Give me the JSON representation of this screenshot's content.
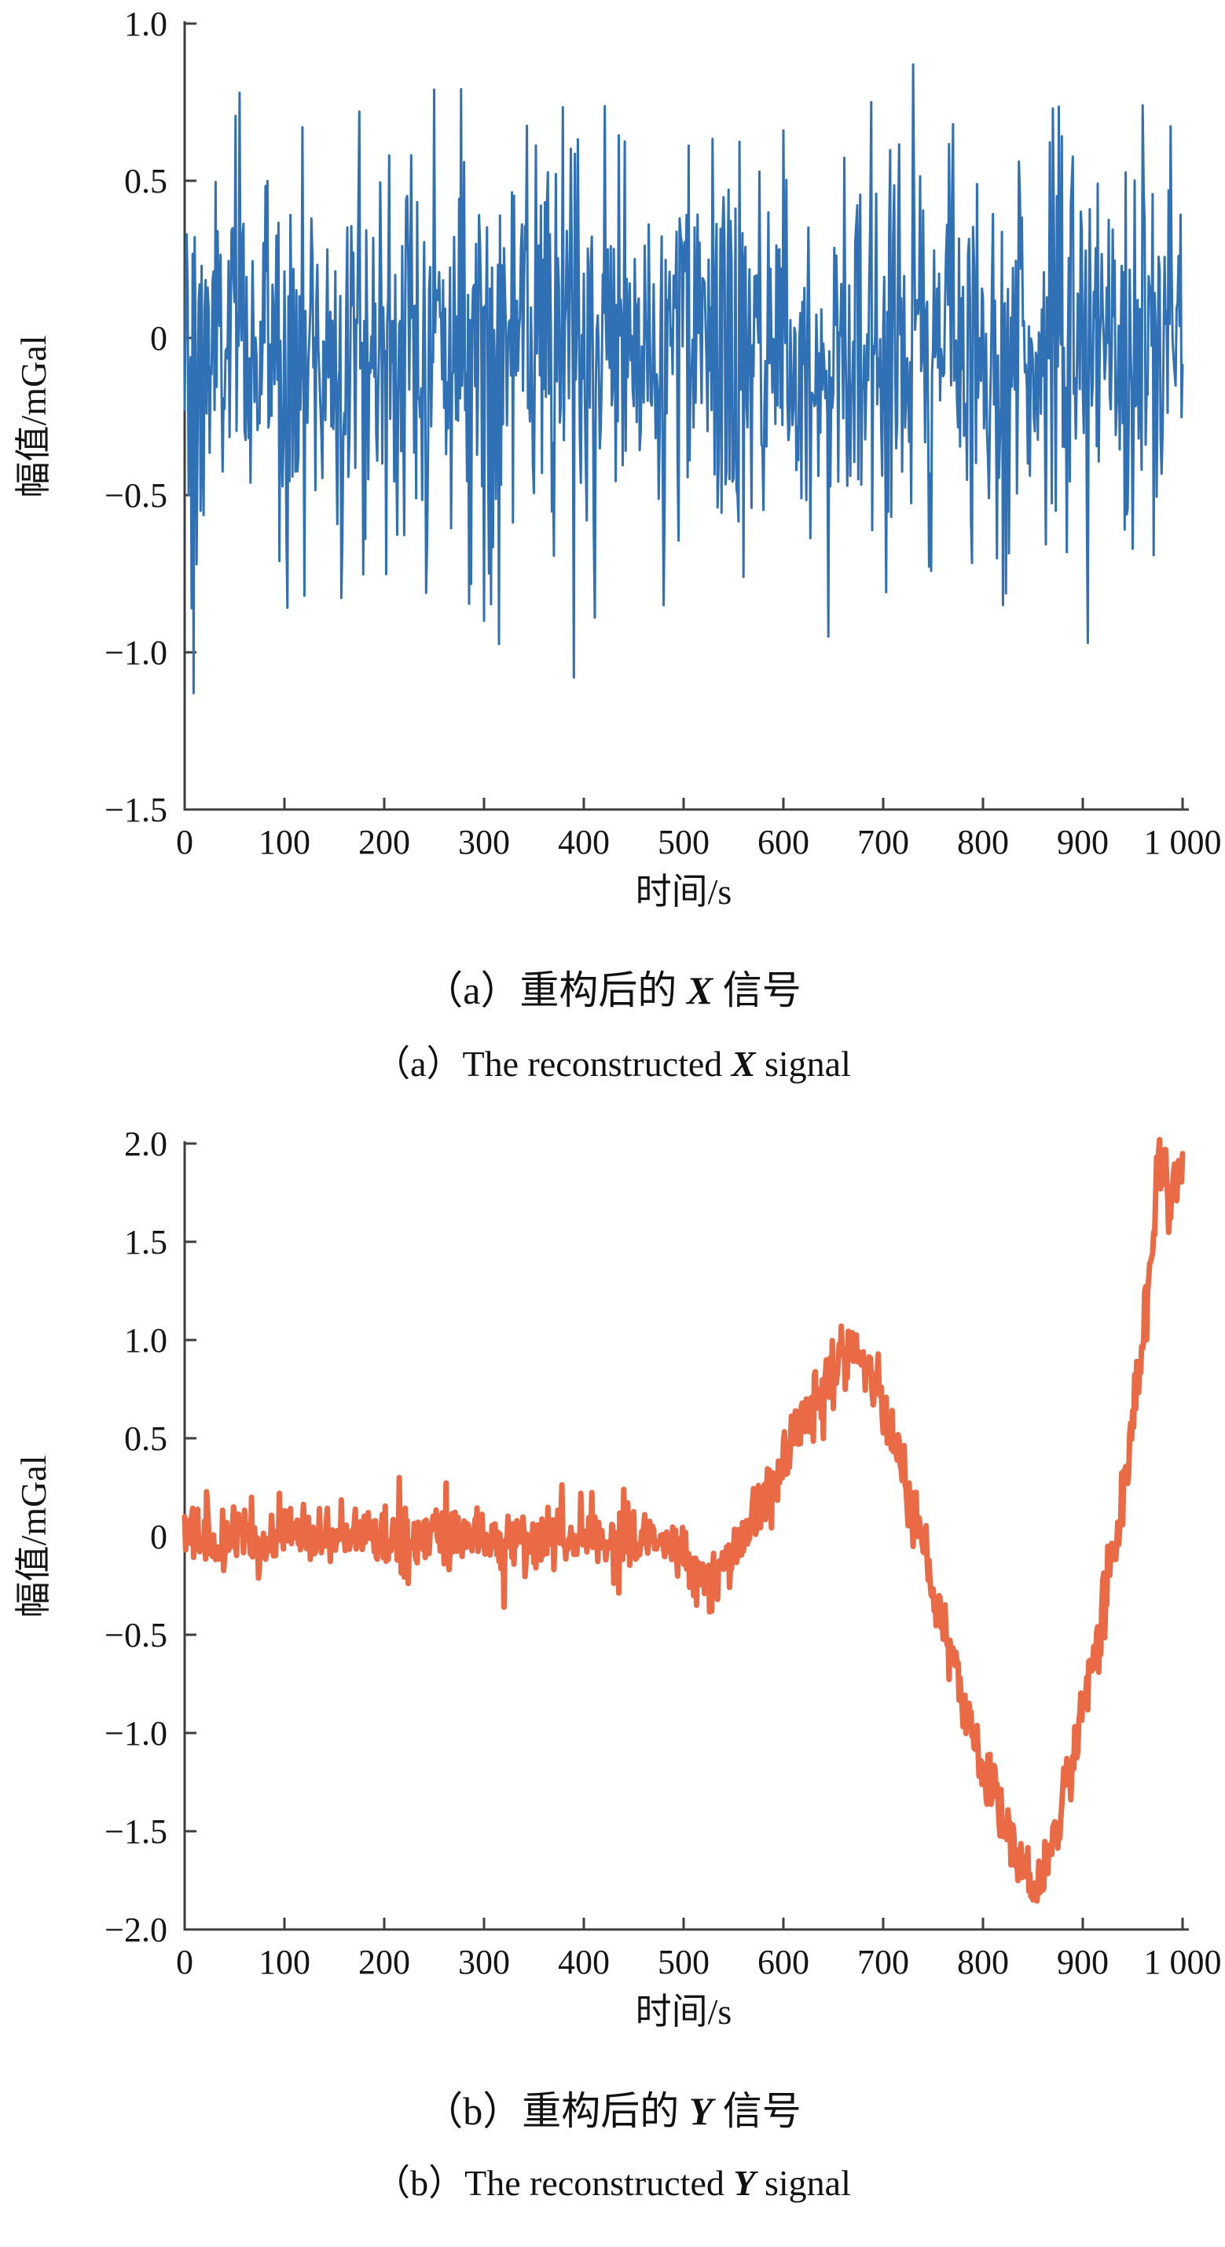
{
  "figure": {
    "background": "#ffffff",
    "axis_color": "#3e3e3e",
    "text_color": "#141414"
  },
  "chart_data": [
    {
      "id": "a",
      "type": "line",
      "xlabel": "时间/s",
      "ylabel": "幅值/mGal",
      "xlim": [
        0,
        1000
      ],
      "ylim": [
        -1.5,
        1.0
      ],
      "xtick_values": [
        0,
        100,
        200,
        300,
        400,
        500,
        600,
        700,
        800,
        900,
        1000
      ],
      "xtick_labels": [
        "0",
        "100",
        "200",
        "300",
        "400",
        "500",
        "600",
        "700",
        "800",
        "900",
        "1 000"
      ],
      "ytick_values": [
        1.0,
        0.5,
        0,
        -0.5,
        -1.0,
        -1.5
      ],
      "ytick_labels": [
        "1.0",
        "0.5",
        "0",
        "−0.5",
        "−1.0",
        "−1.5"
      ],
      "grid": false,
      "legend": "none",
      "color": "#3070b4",
      "line_width": 3,
      "series": {
        "name": "reconstructed X signal",
        "n": 1001,
        "seed": 1234,
        "noise_std": 0.3,
        "noise_mean": -0.03,
        "clip": [
          -1.14,
          0.88
        ],
        "trend": [
          [
            0,
            0
          ],
          [
            1000,
            0
          ]
        ],
        "spikes": [
          [
            2,
            0.33
          ],
          [
            4,
            -0.5
          ],
          [
            7,
            -0.86
          ],
          [
            9,
            -1.13
          ],
          [
            12,
            -0.72
          ],
          [
            16,
            -0.55
          ],
          [
            55,
            0.78
          ],
          [
            120,
            -0.82
          ],
          [
            175,
            0.72
          ],
          [
            250,
            0.79
          ],
          [
            300,
            -0.9
          ],
          [
            390,
            -1.08
          ],
          [
            480,
            -0.85
          ],
          [
            560,
            -0.76
          ],
          [
            600,
            0.66
          ],
          [
            645,
            -0.95
          ],
          [
            688,
            0.75
          ],
          [
            730,
            0.87
          ],
          [
            770,
            0.68
          ],
          [
            820,
            -0.85
          ],
          [
            870,
            0.73
          ],
          [
            905,
            -0.97
          ],
          [
            960,
            0.74
          ]
        ]
      },
      "title_cn": {
        "prefix": "（a）重构后的 ",
        "em": "X",
        "suffix": " 信号"
      },
      "title_en": {
        "prefix": "（a）The reconstructed ",
        "em": "X",
        "suffix": " signal"
      }
    },
    {
      "id": "b",
      "type": "line",
      "xlabel": "时间/s",
      "ylabel": "幅值/mGal",
      "xlim": [
        0,
        1000
      ],
      "ylim": [
        -2.0,
        2.0
      ],
      "xtick_values": [
        0,
        100,
        200,
        300,
        400,
        500,
        600,
        700,
        800,
        900,
        1000
      ],
      "xtick_labels": [
        "0",
        "100",
        "200",
        "300",
        "400",
        "500",
        "600",
        "700",
        "800",
        "900",
        "1 000"
      ],
      "ytick_values": [
        2.0,
        1.5,
        1.0,
        0.5,
        0,
        -0.5,
        -1.0,
        -1.5,
        -2.0
      ],
      "ytick_labels": [
        "2.0",
        "1.5",
        "1.0",
        "0.5",
        "0",
        "−0.5",
        "−1.0",
        "−1.5",
        "−2.0"
      ],
      "grid": false,
      "legend": "none",
      "color": "#ea6a45",
      "line_width": 7,
      "series": {
        "name": "reconstructed Y signal",
        "n": 1001,
        "seed": 77,
        "noise_std": 0.08,
        "noise_mean": 0,
        "clip": [
          -1.95,
          2.02
        ],
        "trend": [
          [
            0,
            0
          ],
          [
            480,
            -0.02
          ],
          [
            500,
            -0.08
          ],
          [
            515,
            -0.2
          ],
          [
            530,
            -0.24
          ],
          [
            545,
            -0.12
          ],
          [
            560,
            0.02
          ],
          [
            580,
            0.18
          ],
          [
            600,
            0.38
          ],
          [
            620,
            0.58
          ],
          [
            640,
            0.78
          ],
          [
            655,
            0.88
          ],
          [
            668,
            0.93
          ],
          [
            680,
            0.88
          ],
          [
            695,
            0.73
          ],
          [
            710,
            0.5
          ],
          [
            725,
            0.22
          ],
          [
            740,
            -0.08
          ],
          [
            760,
            -0.45
          ],
          [
            780,
            -0.82
          ],
          [
            800,
            -1.15
          ],
          [
            815,
            -1.38
          ],
          [
            830,
            -1.56
          ],
          [
            842,
            -1.72
          ],
          [
            852,
            -1.8
          ],
          [
            862,
            -1.68
          ],
          [
            875,
            -1.45
          ],
          [
            890,
            -1.12
          ],
          [
            905,
            -0.75
          ],
          [
            920,
            -0.38
          ],
          [
            935,
            0.05
          ],
          [
            948,
            0.5
          ],
          [
            958,
            0.95
          ],
          [
            966,
            1.35
          ],
          [
            972,
            1.6
          ],
          [
            976,
            1.92
          ],
          [
            980,
            1.8
          ],
          [
            983,
            1.95
          ],
          [
            987,
            1.6
          ],
          [
            991,
            1.78
          ],
          [
            995,
            1.85
          ],
          [
            1000,
            1.88
          ]
        ],
        "spikes": [
          [
            95,
            0.22
          ],
          [
            215,
            0.3
          ],
          [
            320,
            -0.36
          ],
          [
            440,
            0.24
          ],
          [
            528,
            -0.38
          ]
        ]
      },
      "title_cn": {
        "prefix": "（b）重构后的 ",
        "em": "Y",
        "suffix": " 信号"
      },
      "title_en": {
        "prefix": "（b）The reconstructed ",
        "em": "Y",
        "suffix": " signal"
      }
    }
  ]
}
